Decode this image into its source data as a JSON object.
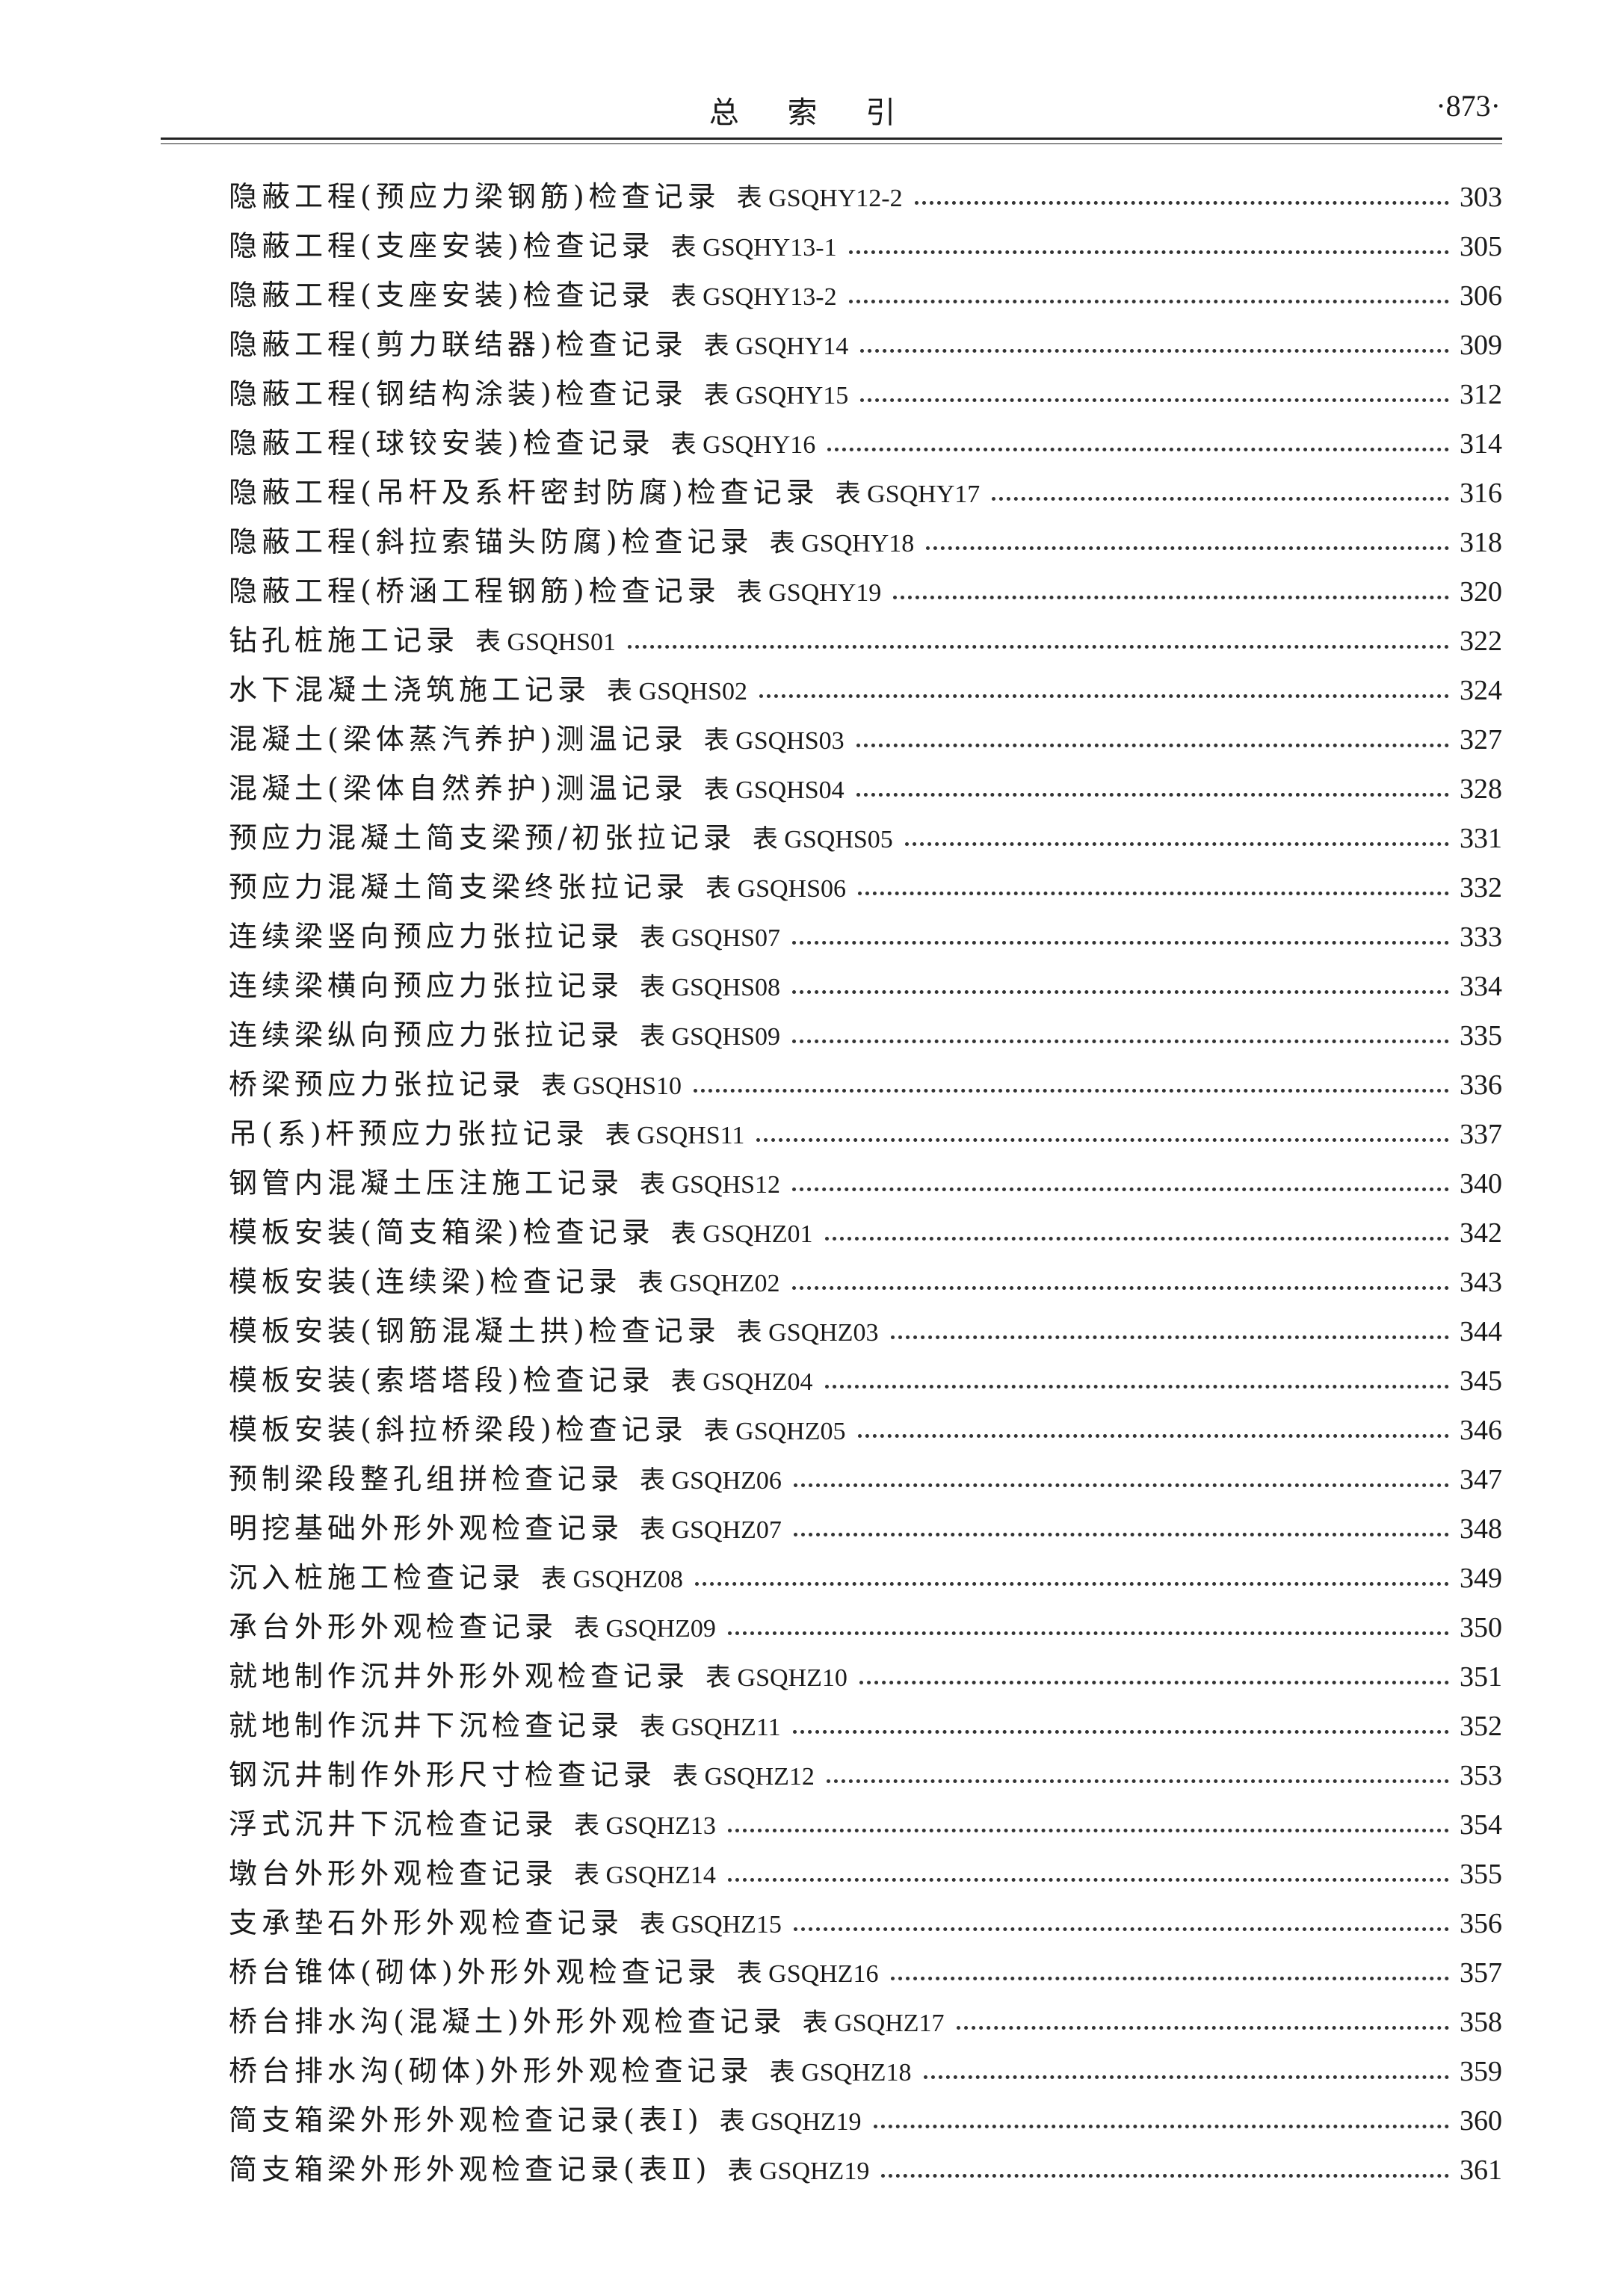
{
  "header": {
    "title": "总 索 引",
    "page_number": "·873·"
  },
  "entries": [
    {
      "title": "隐蔽工程(预应力梁钢筋)检查记录",
      "code": "表 GSQHY12-2",
      "page": "303"
    },
    {
      "title": "隐蔽工程(支座安装)检查记录",
      "code": "表 GSQHY13-1",
      "page": "305"
    },
    {
      "title": "隐蔽工程(支座安装)检查记录",
      "code": "表 GSQHY13-2",
      "page": "306"
    },
    {
      "title": "隐蔽工程(剪力联结器)检查记录",
      "code": "表 GSQHY14",
      "page": "309"
    },
    {
      "title": "隐蔽工程(钢结构涂装)检查记录",
      "code": "表 GSQHY15",
      "page": "312"
    },
    {
      "title": "隐蔽工程(球铰安装)检查记录",
      "code": "表 GSQHY16",
      "page": "314"
    },
    {
      "title": "隐蔽工程(吊杆及系杆密封防腐)检查记录",
      "code": "表 GSQHY17",
      "page": "316"
    },
    {
      "title": "隐蔽工程(斜拉索锚头防腐)检查记录",
      "code": "表 GSQHY18",
      "page": "318"
    },
    {
      "title": "隐蔽工程(桥涵工程钢筋)检查记录",
      "code": "表 GSQHY19",
      "page": "320"
    },
    {
      "title": "钻孔桩施工记录",
      "code": "表 GSQHS01",
      "page": "322"
    },
    {
      "title": "水下混凝土浇筑施工记录",
      "code": "表 GSQHS02",
      "page": "324"
    },
    {
      "title": "混凝土(梁体蒸汽养护)测温记录",
      "code": "表 GSQHS03",
      "page": "327"
    },
    {
      "title": "混凝土(梁体自然养护)测温记录",
      "code": "表 GSQHS04",
      "page": "328"
    },
    {
      "title": "预应力混凝土简支梁预/初张拉记录",
      "code": "表 GSQHS05",
      "page": "331"
    },
    {
      "title": "预应力混凝土简支梁终张拉记录",
      "code": "表 GSQHS06",
      "page": "332"
    },
    {
      "title": "连续梁竖向预应力张拉记录",
      "code": "表 GSQHS07",
      "page": "333"
    },
    {
      "title": "连续梁横向预应力张拉记录",
      "code": "表 GSQHS08",
      "page": "334"
    },
    {
      "title": "连续梁纵向预应力张拉记录",
      "code": "表 GSQHS09",
      "page": "335"
    },
    {
      "title": "桥梁预应力张拉记录",
      "code": "表 GSQHS10",
      "page": "336"
    },
    {
      "title": "吊(系)杆预应力张拉记录",
      "code": "表 GSQHS11",
      "page": "337"
    },
    {
      "title": "钢管内混凝土压注施工记录",
      "code": "表 GSQHS12",
      "page": "340"
    },
    {
      "title": "模板安装(简支箱梁)检查记录",
      "code": "表 GSQHZ01",
      "page": "342"
    },
    {
      "title": "模板安装(连续梁)检查记录",
      "code": "表 GSQHZ02",
      "page": "343"
    },
    {
      "title": "模板安装(钢筋混凝土拱)检查记录",
      "code": "表 GSQHZ03",
      "page": "344"
    },
    {
      "title": "模板安装(索塔塔段)检查记录",
      "code": "表 GSQHZ04",
      "page": "345"
    },
    {
      "title": "模板安装(斜拉桥梁段)检查记录",
      "code": "表 GSQHZ05",
      "page": "346"
    },
    {
      "title": "预制梁段整孔组拼检查记录",
      "code": "表 GSQHZ06",
      "page": "347"
    },
    {
      "title": "明挖基础外形外观检查记录",
      "code": "表 GSQHZ07",
      "page": "348"
    },
    {
      "title": "沉入桩施工检查记录",
      "code": "表 GSQHZ08",
      "page": "349"
    },
    {
      "title": "承台外形外观检查记录",
      "code": "表 GSQHZ09",
      "page": "350"
    },
    {
      "title": "就地制作沉井外形外观检查记录",
      "code": "表 GSQHZ10",
      "page": "351"
    },
    {
      "title": "就地制作沉井下沉检查记录",
      "code": "表 GSQHZ11",
      "page": "352"
    },
    {
      "title": "钢沉井制作外形尺寸检查记录",
      "code": "表 GSQHZ12",
      "page": "353"
    },
    {
      "title": "浮式沉井下沉检查记录",
      "code": "表 GSQHZ13",
      "page": "354"
    },
    {
      "title": "墩台外形外观检查记录",
      "code": "表 GSQHZ14",
      "page": "355"
    },
    {
      "title": "支承垫石外形外观检查记录",
      "code": "表 GSQHZ15",
      "page": "356"
    },
    {
      "title": "桥台锥体(砌体)外形外观检查记录",
      "code": "表 GSQHZ16",
      "page": "357"
    },
    {
      "title": "桥台排水沟(混凝土)外形外观检查记录",
      "code": "表 GSQHZ17",
      "page": "358"
    },
    {
      "title": "桥台排水沟(砌体)外形外观检查记录",
      "code": "表 GSQHZ18",
      "page": "359"
    },
    {
      "title": "简支箱梁外形外观检查记录(表Ⅰ)",
      "code": "表 GSQHZ19",
      "page": "360"
    },
    {
      "title": "简支箱梁外形外观检查记录(表Ⅱ)",
      "code": "表 GSQHZ19",
      "page": "361"
    }
  ]
}
